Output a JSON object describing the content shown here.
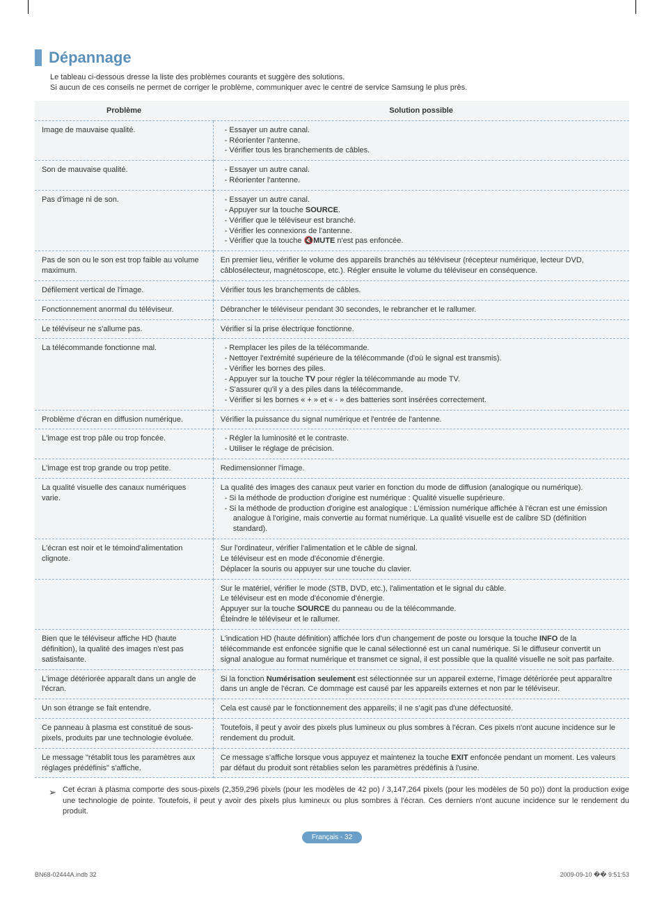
{
  "heading": "Dépannage",
  "intro_line1": "Le tableau ci-dessous dresse la liste des problèmes courants et suggère des solutions.",
  "intro_line2": "Si aucun de ces conseils ne permet de corriger le problème, communiquer avec le centre de service Samsung le plus près.",
  "table": {
    "header_problem": "Problème",
    "header_solution": "Solution possible",
    "rows": [
      {
        "problem": "Image de mauvaise qualité.",
        "type": "list",
        "items": [
          "Essayer un autre canal.",
          "Réorienter l'antenne.",
          "Vérifier tous les branchements de câbles."
        ]
      },
      {
        "problem": "Son de mauvaise qualité.",
        "type": "list",
        "items": [
          "Essayer un autre canal.",
          "Réorienter l'antenne."
        ]
      },
      {
        "problem": "Pas d'image ni de son.",
        "type": "list_html",
        "items": [
          "Essayer un autre canal.",
          "Appuyer sur la touche <span class=\"bold\">SOURCE</span>.",
          "Vérifier que le téléviseur est branché.",
          "Vérifier les connexions de l'antenne.",
          "Vérifier que la touche <span class=\"mute-icon\">🔇MUTE</span> n'est pas enfoncée."
        ]
      },
      {
        "problem": "Pas de son ou le son est trop faible au volume maximum.",
        "type": "text",
        "text": "En premier lieu, vérifier le volume des appareils branchés au téléviseur (récepteur numérique, lecteur DVD, câblosélecteur, magnétoscope, etc.). Régler ensuite le volume du téléviseur en conséquence."
      },
      {
        "problem": "Défilement vertical de l'image.",
        "type": "text",
        "text": "Vérifier tous les branchements de câbles."
      },
      {
        "problem": "Fonctionnement anormal du téléviseur.",
        "type": "text",
        "text": "Débrancher le téléviseur pendant 30 secondes, le rebrancher et le rallumer."
      },
      {
        "problem": "Le téléviseur ne s'allume pas.",
        "type": "text",
        "text": "Vérifier si la prise électrique fonctionne."
      },
      {
        "problem": "La télécommande fonctionne mal.",
        "type": "list_html",
        "items": [
          "Remplacer les piles de la télécommande.",
          "Nettoyer l'extrémité supérieure de la télécommande (d'où le signal est transmis).",
          "Vérifier les bornes des piles.",
          "Appuyer sur la touche <span class=\"bold\">TV</span> pour régler la télécommande au mode TV.",
          "S'assurer qu'il y a des piles dans la télécommande.",
          "Vérifier si les bornes « + » et « - » des batteries sont insérées correctement."
        ]
      },
      {
        "problem": "Problème d'écran en diffusion numérique.",
        "type": "text",
        "text": "Vérifier la puissance du signal numérique et l'entrée de l'antenne."
      },
      {
        "problem": "L'image est trop pâle ou trop foncée.",
        "type": "list",
        "items": [
          "Régler la luminosité et le contraste.",
          "Utiliser le réglage de précision."
        ]
      },
      {
        "problem": "L'image est trop grande ou trop petite.",
        "type": "text",
        "text": "Redimensionner l'image."
      },
      {
        "problem": "La qualité visuelle des canaux numériques varie.",
        "type": "mixed_html",
        "pre": "La qualité des images des canaux peut varier en fonction du mode de diffusion (analogique ou numérique).",
        "items": [
          "Si la méthode de production d'origine est numérique : Qualité visuelle supérieure.",
          "Si la méthode de production d'origine est analogique : L'émission numérique affichée à l'écran est une émission analogue à l'origine, mais convertie au format numérique. La qualité visuelle est de calibre SD (définition standard)."
        ]
      },
      {
        "problem": "L'écran est noir et le témoind'alimentation clignote.",
        "type": "text",
        "text": "Sur l'ordinateur, vérifier l'alimentation et le câble de signal.\nLe téléviseur est en mode d'économie d'énergie.\nDéplacer la souris ou appuyer sur une touche du clavier."
      },
      {
        "problem": "",
        "type": "html",
        "html": "Sur le matériel, vérifier le mode (STB, DVD, etc.), l'alimentation et le signal du câble.<br>Le téléviseur est en mode d'économie d'énergie.<br>Appuyer sur la touche <span class=\"bold\">SOURCE</span> du panneau ou de la télécommande.<br>Éteindre le téléviseur et le rallumer."
      },
      {
        "problem": "Bien que le téléviseur affiche HD (haute définition), la qualité des images n'est pas satisfaisante.",
        "type": "html",
        "html": "L'indication HD (haute définition) affichée lors d'un changement de poste ou lorsque la touche <span class=\"bold\">INFO</span> de la télécommande est enfoncée signifie que le canal sélectionné est un canal numérique. Si le diffuseur convertit un signal analogue au format numérique et transmet ce signal, il est possible que la qualité visuelle ne soit pas parfaite."
      },
      {
        "problem": "L'image détériorée apparaît dans un angle de l'écran.",
        "type": "html",
        "html": "Si la fonction <span class=\"bold\">Numérisation seulement</span> est sélectionnée sur un appareil externe, l'image détériorée peut apparaître dans un angle de l'écran. Ce dommage est causé par les appareils externes et non par le téléviseur."
      },
      {
        "problem": "Un son étrange se fait entendre.",
        "type": "text",
        "text": "Cela est causé par le fonctionnement des appareils; il ne s'agit pas d'une défectuosité."
      },
      {
        "problem": "Ce panneau à plasma est constitué de sous-pixels, produits par une technologie évoluée.",
        "type": "text",
        "text": "Toutefois, il peut y avoir des pixels plus lumineux ou plus sombres à l'écran. Ces pixels n'ont aucune incidence sur le rendement du produit."
      },
      {
        "problem": "Le message \"rétablit tous les paramètres aux réglages prédéfinis\" s'affiche.",
        "type": "html",
        "html": "Ce message s'affiche lorsque vous appuyez et maintenez la touche <span class=\"bold\">EXIT</span> enfoncée pendant un moment. Les valeurs par défaut du produit sont rétablies selon les paramètres prédéfinis à l'usine."
      }
    ]
  },
  "note": "Cet écran à plasma comporte des sous-pixels (2,359,296 pixels (pour les modèles de 42 po) / 3,147,264 pixels (pour les modèles de 50 po)) dont la production exige une technologie de pointe. Toutefois, il peut y avoir des pixels plus lumineux ou plus sombres à l'écran. Ces derniers n'ont aucune incidence sur le rendement du produit.",
  "page_badge": "Français - 32",
  "footer_left": "BN68-02444A.indb   32",
  "footer_right": "2009-09-10   �� 9:51:53"
}
